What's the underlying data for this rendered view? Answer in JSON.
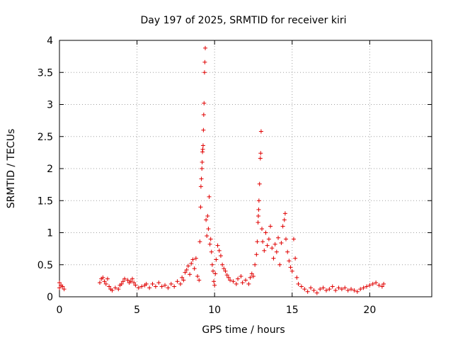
{
  "chart_data": {
    "type": "scatter",
    "title": "Day 197 of 2025, SRMTID for receiver kiri",
    "xlabel": "GPS time / hours",
    "ylabel": "SRMTID / TECUs",
    "xlim": [
      0,
      24
    ],
    "ylim": [
      0,
      4
    ],
    "xticks": [
      0,
      5,
      10,
      15,
      20
    ],
    "xtick_labels": [
      "0",
      "5",
      "10",
      "15",
      "20"
    ],
    "yticks": [
      0,
      0.5,
      1,
      1.5,
      2,
      2.5,
      3,
      3.5,
      4
    ],
    "ytick_labels": [
      "0",
      "0.5",
      "1",
      "1.5",
      "2",
      "2.5",
      "3",
      "3.5",
      "4"
    ],
    "grid": true,
    "marker": "+",
    "color": "#e00000",
    "series": [
      {
        "name": "kiri",
        "points": [
          [
            0.0,
            0.22
          ],
          [
            0.0,
            0.14
          ],
          [
            0.1,
            0.18
          ],
          [
            0.2,
            0.16
          ],
          [
            0.3,
            0.12
          ],
          [
            2.6,
            0.22
          ],
          [
            2.7,
            0.28
          ],
          [
            2.8,
            0.3
          ],
          [
            2.9,
            0.24
          ],
          [
            3.0,
            0.2
          ],
          [
            3.1,
            0.28
          ],
          [
            3.2,
            0.16
          ],
          [
            3.3,
            0.12
          ],
          [
            3.4,
            0.1
          ],
          [
            3.6,
            0.14
          ],
          [
            3.8,
            0.12
          ],
          [
            3.9,
            0.18
          ],
          [
            4.0,
            0.2
          ],
          [
            4.1,
            0.24
          ],
          [
            4.2,
            0.28
          ],
          [
            4.4,
            0.26
          ],
          [
            4.5,
            0.22
          ],
          [
            4.6,
            0.24
          ],
          [
            4.7,
            0.28
          ],
          [
            4.8,
            0.22
          ],
          [
            4.9,
            0.18
          ],
          [
            5.1,
            0.14
          ],
          [
            5.3,
            0.16
          ],
          [
            5.5,
            0.18
          ],
          [
            5.6,
            0.2
          ],
          [
            5.8,
            0.14
          ],
          [
            6.0,
            0.2
          ],
          [
            6.2,
            0.16
          ],
          [
            6.4,
            0.22
          ],
          [
            6.6,
            0.16
          ],
          [
            6.8,
            0.18
          ],
          [
            7.0,
            0.14
          ],
          [
            7.2,
            0.2
          ],
          [
            7.4,
            0.16
          ],
          [
            7.6,
            0.24
          ],
          [
            7.8,
            0.2
          ],
          [
            7.9,
            0.3
          ],
          [
            8.0,
            0.26
          ],
          [
            8.1,
            0.38
          ],
          [
            8.2,
            0.42
          ],
          [
            8.3,
            0.48
          ],
          [
            8.4,
            0.35
          ],
          [
            8.5,
            0.52
          ],
          [
            8.6,
            0.58
          ],
          [
            8.7,
            0.44
          ],
          [
            8.8,
            0.6
          ],
          [
            8.9,
            0.32
          ],
          [
            9.0,
            0.26
          ],
          [
            9.05,
            0.86
          ],
          [
            9.1,
            1.4
          ],
          [
            9.12,
            1.72
          ],
          [
            9.15,
            1.84
          ],
          [
            9.18,
            2.0
          ],
          [
            9.2,
            2.1
          ],
          [
            9.22,
            2.26
          ],
          [
            9.24,
            2.3
          ],
          [
            9.26,
            2.36
          ],
          [
            9.28,
            2.6
          ],
          [
            9.3,
            2.84
          ],
          [
            9.32,
            3.02
          ],
          [
            9.35,
            3.5
          ],
          [
            9.37,
            3.66
          ],
          [
            9.4,
            3.88
          ],
          [
            9.45,
            1.2
          ],
          [
            9.5,
            0.95
          ],
          [
            9.55,
            1.26
          ],
          [
            9.6,
            1.06
          ],
          [
            9.65,
            1.56
          ],
          [
            9.7,
            0.82
          ],
          [
            9.75,
            0.9
          ],
          [
            9.8,
            0.7
          ],
          [
            9.85,
            0.5
          ],
          [
            9.9,
            0.4
          ],
          [
            9.95,
            0.24
          ],
          [
            10.0,
            0.18
          ],
          [
            10.05,
            0.36
          ],
          [
            10.1,
            0.58
          ],
          [
            10.2,
            0.8
          ],
          [
            10.3,
            0.72
          ],
          [
            10.4,
            0.64
          ],
          [
            10.5,
            0.5
          ],
          [
            10.6,
            0.44
          ],
          [
            10.7,
            0.4
          ],
          [
            10.8,
            0.34
          ],
          [
            10.9,
            0.3
          ],
          [
            11.0,
            0.26
          ],
          [
            11.2,
            0.24
          ],
          [
            11.4,
            0.2
          ],
          [
            11.5,
            0.28
          ],
          [
            11.7,
            0.32
          ],
          [
            11.8,
            0.22
          ],
          [
            12.0,
            0.26
          ],
          [
            12.2,
            0.2
          ],
          [
            12.3,
            0.3
          ],
          [
            12.4,
            0.36
          ],
          [
            12.5,
            0.32
          ],
          [
            12.6,
            0.5
          ],
          [
            12.7,
            0.66
          ],
          [
            12.75,
            0.86
          ],
          [
            12.8,
            1.16
          ],
          [
            12.82,
            1.26
          ],
          [
            12.84,
            1.36
          ],
          [
            12.86,
            1.5
          ],
          [
            12.9,
            1.76
          ],
          [
            12.95,
            2.16
          ],
          [
            12.97,
            2.24
          ],
          [
            13.0,
            2.58
          ],
          [
            13.05,
            1.06
          ],
          [
            13.1,
            0.86
          ],
          [
            13.2,
            0.72
          ],
          [
            13.3,
            1.0
          ],
          [
            13.4,
            0.8
          ],
          [
            13.5,
            0.9
          ],
          [
            13.6,
            1.1
          ],
          [
            13.7,
            0.76
          ],
          [
            13.8,
            0.6
          ],
          [
            13.9,
            0.82
          ],
          [
            14.0,
            0.7
          ],
          [
            14.1,
            0.92
          ],
          [
            14.2,
            0.5
          ],
          [
            14.3,
            0.84
          ],
          [
            14.4,
            1.1
          ],
          [
            14.5,
            1.2
          ],
          [
            14.55,
            1.3
          ],
          [
            14.6,
            0.9
          ],
          [
            14.7,
            0.7
          ],
          [
            14.8,
            0.56
          ],
          [
            14.9,
            0.46
          ],
          [
            15.0,
            0.4
          ],
          [
            15.1,
            0.9
          ],
          [
            15.2,
            0.6
          ],
          [
            15.3,
            0.3
          ],
          [
            15.4,
            0.2
          ],
          [
            15.6,
            0.16
          ],
          [
            15.8,
            0.12
          ],
          [
            16.0,
            0.08
          ],
          [
            16.2,
            0.14
          ],
          [
            16.4,
            0.1
          ],
          [
            16.6,
            0.06
          ],
          [
            16.8,
            0.12
          ],
          [
            17.0,
            0.14
          ],
          [
            17.2,
            0.1
          ],
          [
            17.4,
            0.12
          ],
          [
            17.6,
            0.16
          ],
          [
            17.8,
            0.1
          ],
          [
            18.0,
            0.14
          ],
          [
            18.2,
            0.12
          ],
          [
            18.4,
            0.14
          ],
          [
            18.6,
            0.1
          ],
          [
            18.8,
            0.12
          ],
          [
            19.0,
            0.1
          ],
          [
            19.2,
            0.08
          ],
          [
            19.4,
            0.12
          ],
          [
            19.6,
            0.14
          ],
          [
            19.8,
            0.16
          ],
          [
            20.0,
            0.18
          ],
          [
            20.2,
            0.2
          ],
          [
            20.4,
            0.22
          ],
          [
            20.6,
            0.18
          ],
          [
            20.8,
            0.16
          ],
          [
            20.9,
            0.2
          ]
        ]
      }
    ]
  }
}
